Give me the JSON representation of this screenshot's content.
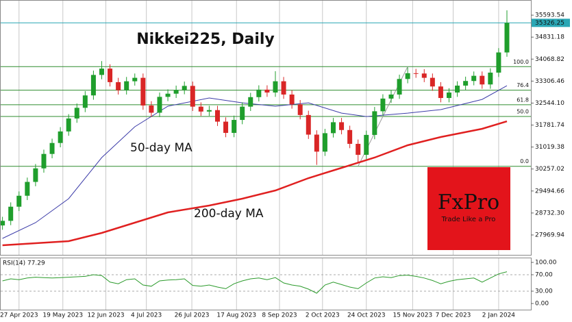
{
  "chart_data": [
    {
      "type": "candlestick",
      "title": "Nikkei225, Daily",
      "open": [
        28300,
        28460,
        28950,
        29330,
        29810,
        30280,
        30780,
        31160,
        31560,
        32010,
        32380,
        32810,
        33520,
        33740,
        33270,
        32990,
        33300,
        33420,
        32460,
        32210,
        32760,
        32870,
        33000,
        33140,
        32420,
        32250,
        32300,
        31900,
        31510,
        31960,
        32420,
        32750,
        33010,
        32910,
        33300,
        32840,
        32500,
        32130,
        31450,
        30860,
        31500,
        31880,
        31610,
        31130,
        30750,
        31440,
        32260,
        32700,
        32840,
        33380,
        33580,
        33570,
        33420,
        33120,
        32720,
        32910,
        33150,
        33310,
        33490,
        33190,
        33600,
        34300
      ],
      "high": [
        28600,
        29100,
        29480,
        29960,
        30430,
        30930,
        31310,
        31710,
        32160,
        32530,
        32960,
        33670,
        34000,
        33890,
        33420,
        33450,
        33570,
        33570,
        32610,
        32910,
        33020,
        33150,
        33290,
        33290,
        32570,
        32450,
        32450,
        32050,
        32110,
        32570,
        32900,
        33160,
        33160,
        33650,
        33450,
        32990,
        32650,
        32280,
        31600,
        31650,
        32030,
        32030,
        31760,
        31280,
        31590,
        32410,
        32850,
        32990,
        33530,
        33780,
        33730,
        33720,
        33570,
        33270,
        33060,
        33300,
        33460,
        33640,
        33640,
        33750,
        34450,
        35760
      ],
      "low": [
        28150,
        28310,
        28800,
        29180,
        29660,
        30130,
        30630,
        31010,
        31410,
        31860,
        32230,
        32660,
        33370,
        33120,
        32840,
        32840,
        33150,
        32310,
        32060,
        32060,
        32610,
        32720,
        32850,
        32270,
        32100,
        32100,
        31750,
        31360,
        31360,
        31810,
        32270,
        32600,
        32760,
        32760,
        32690,
        32350,
        31980,
        31300,
        30400,
        30710,
        31350,
        31460,
        30980,
        30450,
        30600,
        31290,
        32110,
        32550,
        32690,
        33230,
        33420,
        33270,
        32970,
        32570,
        32570,
        32760,
        33000,
        33160,
        33040,
        33040,
        33450,
        34150
      ],
      "close": [
        28460,
        28950,
        29330,
        29810,
        30280,
        30780,
        31160,
        31560,
        32010,
        32380,
        32810,
        33520,
        33740,
        33270,
        32990,
        33300,
        33420,
        32460,
        32210,
        32760,
        32870,
        33000,
        33140,
        32420,
        32250,
        32300,
        31900,
        31510,
        31960,
        32420,
        32750,
        33010,
        32910,
        33300,
        32840,
        32500,
        32130,
        31450,
        30860,
        31500,
        31880,
        31610,
        31130,
        30750,
        31440,
        32260,
        32700,
        32840,
        33380,
        33580,
        33570,
        33420,
        33120,
        32720,
        32910,
        33150,
        33310,
        33490,
        33190,
        33600,
        34300,
        35326.25
      ],
      "up_color": "#1f9e2c",
      "down_color": "#d92626",
      "series": [
        {
          "name": "50-day MA",
          "color": "#3b3ba8",
          "x": [
            0,
            4,
            8,
            12,
            16,
            20,
            25,
            29,
            33,
            37,
            41,
            44,
            49,
            53,
            58,
            61
          ],
          "values": [
            27851,
            28397,
            29228,
            30654,
            31722,
            32435,
            32720,
            32553,
            32435,
            32553,
            32197,
            32078,
            32197,
            32316,
            32672,
            33147
          ]
        },
        {
          "name": "200-day MA",
          "color": "#e02020",
          "x": [
            0,
            8,
            12,
            16,
            20,
            25,
            29,
            33,
            37,
            41,
            45,
            49,
            53,
            58,
            61
          ],
          "values": [
            27613,
            27756,
            28041,
            28397,
            28754,
            28991,
            29229,
            29514,
            29941,
            30297,
            30654,
            31081,
            31366,
            31651,
            31912
          ]
        }
      ],
      "last": 35326.25,
      "last_color": "#2aa7b5",
      "fib_color": "#2e8b2e",
      "fib_levels": [
        {
          "value": 33807,
          "label": "100.0"
        },
        {
          "value": 32992,
          "label": "76.4"
        },
        {
          "value": 32487,
          "label": "61.8"
        },
        {
          "value": 32080,
          "label": "50.0"
        },
        {
          "value": 30352,
          "label": "0.0"
        }
      ],
      "xlim": [
        -0.3,
        63.9
      ],
      "xticks": [
        {
          "value": 2.0,
          "label": "27 Apr 2023"
        },
        {
          "value": 7.3,
          "label": "19 May 2023"
        },
        {
          "value": 12.5,
          "label": "12 Jun 2023"
        },
        {
          "value": 17.4,
          "label": "4 Jul 2023"
        },
        {
          "value": 22.9,
          "label": "26 Jul 2023"
        },
        {
          "value": 28.3,
          "label": "17 Aug 2023"
        },
        {
          "value": 33.5,
          "label": "8 Sep 2023"
        },
        {
          "value": 38.7,
          "label": "2 Oct 2023"
        },
        {
          "value": 44.0,
          "label": "24 Oct 2023"
        },
        {
          "value": 49.6,
          "label": "15 Nov 2023"
        },
        {
          "value": 54.5,
          "label": "7 Dec 2023"
        },
        {
          "value": 60.0,
          "label": "2 Jan 2024"
        }
      ],
      "ylim": [
        27280,
        36000
      ],
      "yticks": [
        27969.94,
        {
          "value": 28732.3,
          "label": "28732.30"
        },
        29494.66,
        30257.02,
        31019.38,
        31781.74,
        {
          "value": 32544.1,
          "label": "32544.10"
        },
        33306.46,
        34068.82,
        34831.18,
        35593.54
      ],
      "annotations": [
        {
          "text": "50-day MA",
          "color": "#3b3ba8"
        },
        {
          "text": "200-day MA",
          "color": "#e02020"
        }
      ],
      "logo": {
        "name": "FxPro",
        "tagline": "Trade Like a Pro",
        "color": "#e3141b"
      }
    },
    {
      "type": "line",
      "title": "RSI(14) 77.29",
      "color": "#2a9a2a",
      "values": [
        55,
        60,
        58,
        62,
        64,
        63,
        62,
        63,
        64,
        65,
        66,
        70,
        68,
        52,
        48,
        58,
        60,
        45,
        42,
        55,
        57,
        58,
        60,
        44,
        42,
        45,
        40,
        36,
        48,
        55,
        60,
        62,
        58,
        63,
        50,
        45,
        42,
        35,
        25,
        45,
        52,
        46,
        40,
        36,
        50,
        62,
        65,
        63,
        68,
        69,
        66,
        62,
        56,
        48,
        54,
        58,
        60,
        62,
        52,
        62,
        72,
        77.29
      ],
      "xlim": [
        -0.3,
        63.9
      ],
      "ylim": [
        -15,
        110
      ],
      "yticks": [
        {
          "value": 100,
          "label": "100.00"
        },
        {
          "value": 70,
          "label": "70.00"
        },
        {
          "value": 30,
          "label": "30.00"
        },
        {
          "value": 0,
          "label": "0.00"
        }
      ],
      "levels": [
        70,
        30
      ]
    }
  ]
}
